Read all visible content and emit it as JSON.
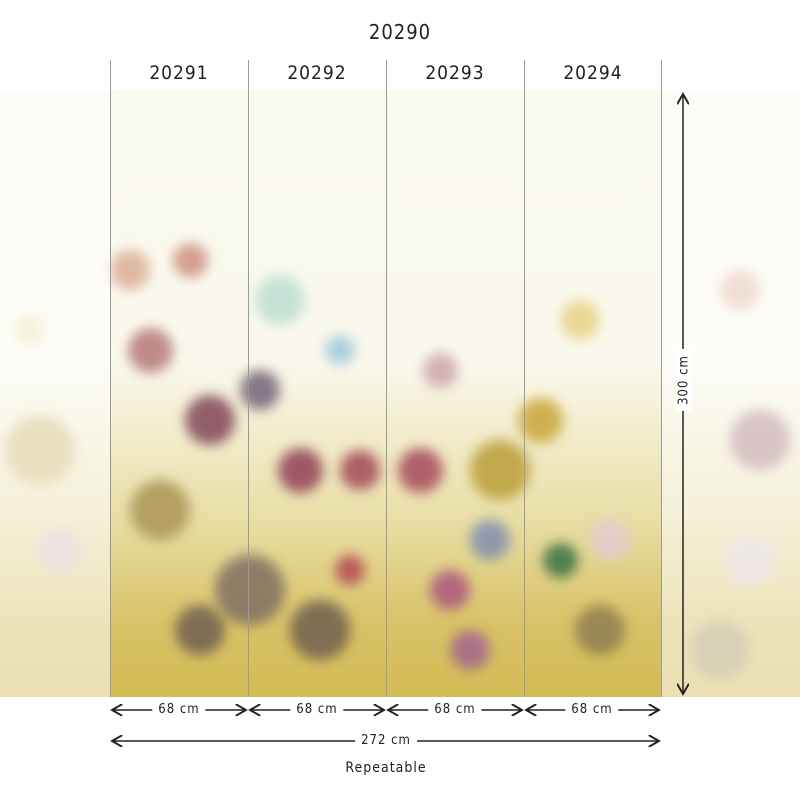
{
  "collection_code": "20290",
  "panels": [
    {
      "code": "20291",
      "width": "68 cm"
    },
    {
      "code": "20292",
      "width": "68 cm"
    },
    {
      "code": "20293",
      "width": "68 cm"
    },
    {
      "code": "20294",
      "width": "68 cm"
    }
  ],
  "total_width": "272 cm",
  "height": "300 cm",
  "note": "Repeatable",
  "colors": {
    "background": "#faf8ec",
    "ochre": "#d4bb55",
    "plum": "#8a3550",
    "teal": "#4aa8b8"
  }
}
